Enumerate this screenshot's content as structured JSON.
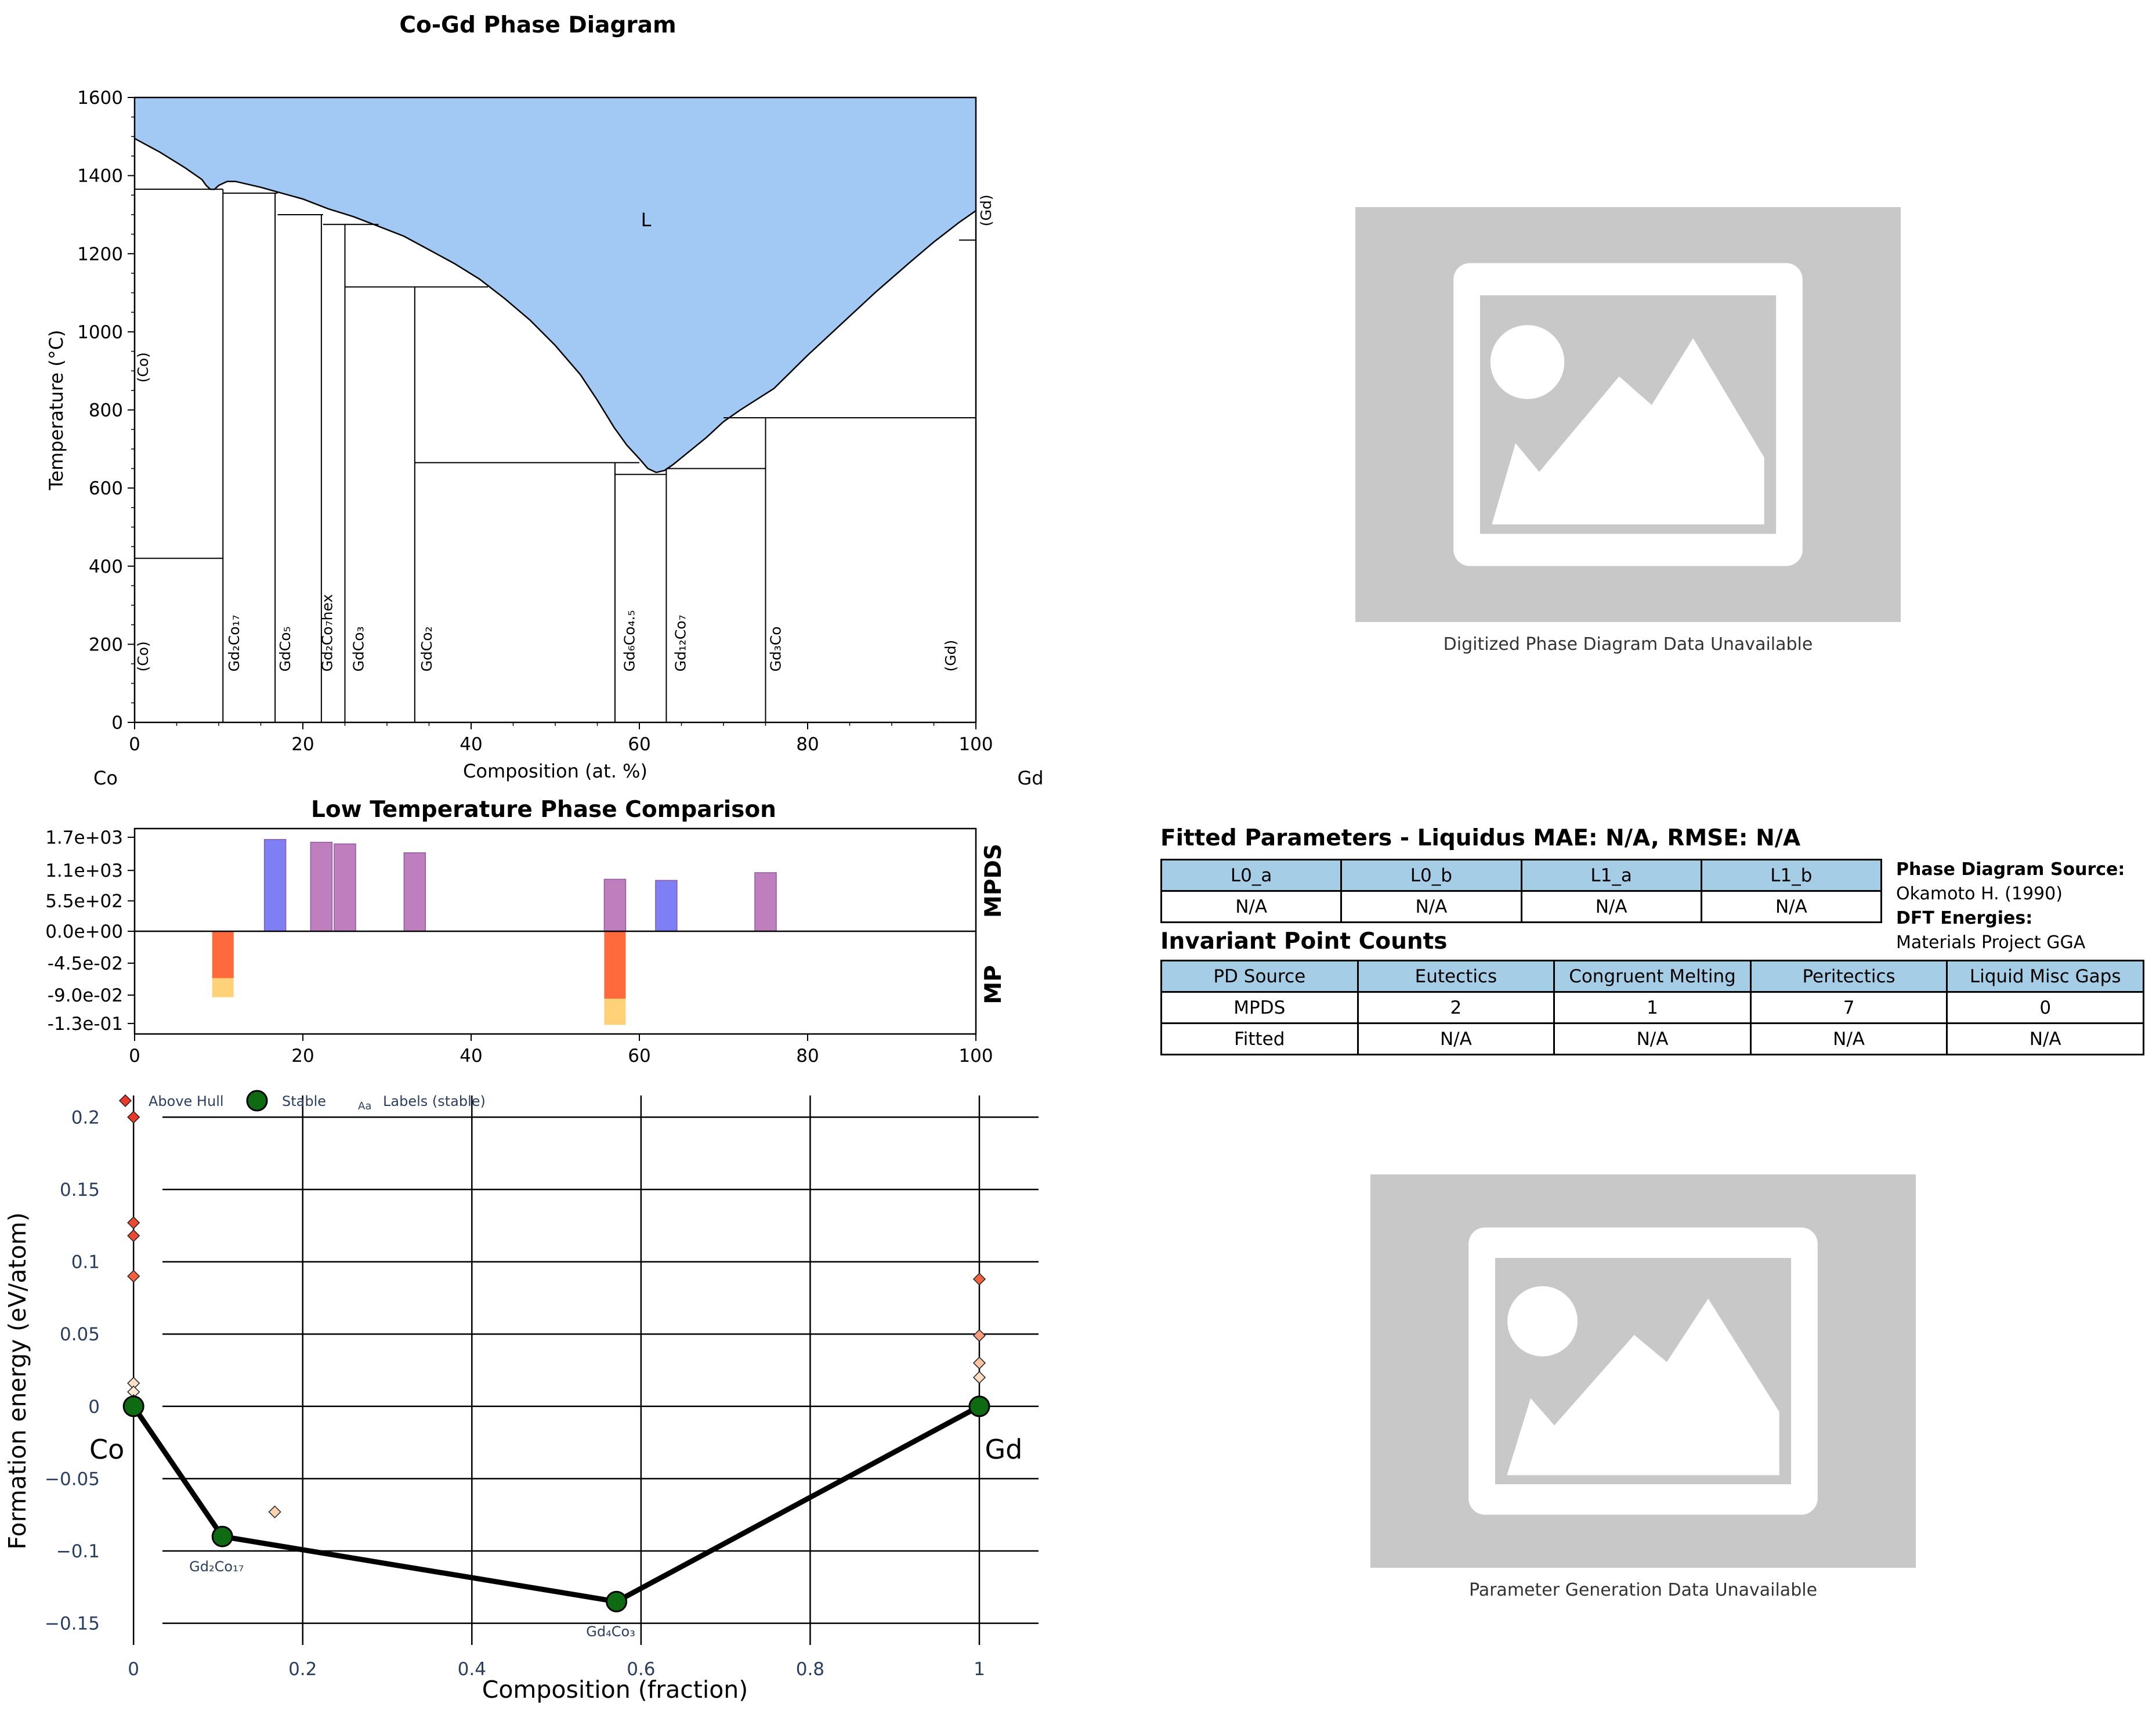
{
  "chart_data": [
    {
      "type": "phase_diagram",
      "title": "Co-Gd Phase Diagram",
      "xlabel": "Composition (at. %)",
      "ylabel": "Temperature (°C)",
      "xlim": [
        0,
        100
      ],
      "ylim": [
        0,
        1600
      ],
      "x_ticks": [
        "0",
        "20",
        "40",
        "60",
        "80",
        "100"
      ],
      "y_ticks": [
        "0",
        "200",
        "400",
        "600",
        "800",
        "1000",
        "1200",
        "1400",
        "1600"
      ],
      "left_element": "Co",
      "right_element": "Gd",
      "liquid_label": "L",
      "liquid_color": "#a1c9f4",
      "liquidus": [
        [
          0,
          1495
        ],
        [
          3,
          1460
        ],
        [
          6,
          1420
        ],
        [
          8,
          1390
        ],
        [
          8.5,
          1375
        ],
        [
          9,
          1365
        ],
        [
          9.5,
          1365
        ],
        [
          10,
          1375
        ],
        [
          11,
          1385
        ],
        [
          12,
          1385
        ],
        [
          15,
          1370
        ],
        [
          17,
          1358
        ],
        [
          20,
          1340
        ],
        [
          23,
          1315
        ],
        [
          26,
          1295
        ],
        [
          29,
          1270
        ],
        [
          32,
          1245
        ],
        [
          35,
          1210
        ],
        [
          38,
          1175
        ],
        [
          41,
          1135
        ],
        [
          44,
          1085
        ],
        [
          47,
          1030
        ],
        [
          50,
          965
        ],
        [
          53,
          890
        ],
        [
          55,
          825
        ],
        [
          57,
          755
        ],
        [
          58.5,
          710
        ],
        [
          60,
          675
        ],
        [
          61,
          650
        ],
        [
          62,
          640
        ],
        [
          63,
          645
        ],
        [
          64,
          660
        ],
        [
          66,
          695
        ],
        [
          68,
          730
        ],
        [
          70,
          770
        ],
        [
          72,
          800
        ],
        [
          76,
          855
        ],
        [
          80,
          940
        ],
        [
          84,
          1020
        ],
        [
          88,
          1100
        ],
        [
          92,
          1175
        ],
        [
          95,
          1230
        ],
        [
          98,
          1280
        ],
        [
          100,
          1310
        ]
      ],
      "lines": [
        [
          [
            0,
            1365
          ],
          [
            10.5,
            1365
          ]
        ],
        [
          [
            10.5,
            1355
          ],
          [
            17,
            1355
          ]
        ],
        [
          [
            17,
            1300
          ],
          [
            22.4,
            1300
          ]
        ],
        [
          [
            22.4,
            1275
          ],
          [
            25,
            1275
          ]
        ],
        [
          [
            25,
            1275
          ],
          [
            29,
            1275
          ]
        ],
        [
          [
            25,
            1115
          ],
          [
            33.3,
            1115
          ]
        ],
        [
          [
            33.3,
            1115
          ],
          [
            42,
            1115
          ]
        ],
        [
          [
            33.3,
            665
          ],
          [
            57.1,
            665
          ]
        ],
        [
          [
            57.1,
            665
          ],
          [
            60,
            665
          ]
        ],
        [
          [
            57.1,
            635
          ],
          [
            63.2,
            635
          ]
        ],
        [
          [
            63.2,
            650
          ],
          [
            75,
            650
          ]
        ],
        [
          [
            63.2,
            650
          ],
          [
            68,
            650
          ]
        ],
        [
          [
            75,
            780
          ],
          [
            100,
            780
          ]
        ],
        [
          [
            70,
            780
          ],
          [
            75,
            780
          ]
        ],
        [
          [
            98,
            1235
          ],
          [
            100,
            1235
          ]
        ],
        [
          [
            0,
            420
          ],
          [
            10.5,
            420
          ]
        ]
      ],
      "verticals": [
        {
          "x": 10.5,
          "top": 1365
        },
        {
          "x": 16.7,
          "top": 1355
        },
        {
          "x": 22.2,
          "top": 1300
        },
        {
          "x": 25,
          "top": 1275
        },
        {
          "x": 33.3,
          "top": 1115
        },
        {
          "x": 57.1,
          "top": 665
        },
        {
          "x": 63.2,
          "top": 650
        },
        {
          "x": 75,
          "top": 780
        }
      ],
      "phase_labels": [
        {
          "text": "(Co)",
          "x": 1.6,
          "y": 130
        },
        {
          "text": "(Co)",
          "x": 1.6,
          "y": 870
        },
        {
          "text": "Gd₂Co₁₇",
          "x": 12.4,
          "y": 130
        },
        {
          "text": "GdCo₅",
          "x": 18.5,
          "y": 130
        },
        {
          "text": "Gd₂Co₇hex",
          "x": 23.5,
          "y": 130
        },
        {
          "text": "GdCo₃",
          "x": 27.2,
          "y": 130
        },
        {
          "text": "GdCo₂",
          "x": 35.3,
          "y": 130
        },
        {
          "text": "Gd₆Co₄.₅",
          "x": 59.4,
          "y": 130
        },
        {
          "text": "Gd₁₂Co₇",
          "x": 65.5,
          "y": 130
        },
        {
          "text": "Gd₃Co",
          "x": 76.8,
          "y": 130
        },
        {
          "text": "(Gd)",
          "x": 97.6,
          "y": 130
        },
        {
          "text": "(Gd)",
          "x": 101.8,
          "y": 1270
        }
      ]
    },
    {
      "type": "bar",
      "title": "Low Temperature Phase Comparison",
      "xlim": [
        0,
        100
      ],
      "x_ticks": [
        "0",
        "20",
        "40",
        "60",
        "80",
        "100"
      ],
      "upper_label": "MPDS",
      "lower_label": "MP",
      "upper_ticks": [
        "1.7e+03",
        "1.1e+03",
        "5.5e+02",
        "0.0e+00"
      ],
      "lower_ticks": [
        "-4.5e-02",
        "-9.0e-02",
        "-1.3e-01"
      ],
      "upper_max": 1700,
      "lower_min": -0.135,
      "mpds_bars": [
        {
          "x": 16.7,
          "value": 1660,
          "color": "#7f7ff5"
        },
        {
          "x": 22.2,
          "value": 1610,
          "color": "#bf7fbf"
        },
        {
          "x": 25,
          "value": 1580,
          "color": "#bf7fbf"
        },
        {
          "x": 33.3,
          "value": 1420,
          "color": "#bf7fbf"
        },
        {
          "x": 57.1,
          "value": 940,
          "color": "#bf7fbf"
        },
        {
          "x": 63.2,
          "value": 920,
          "color": "#7f7ff5"
        },
        {
          "x": 75,
          "value": 1060,
          "color": "#bf7fbf"
        }
      ],
      "mp_bars": [
        {
          "x": 10.5,
          "value": -0.093,
          "overlay": -0.066
        },
        {
          "x": 57.1,
          "value": -0.132,
          "overlay": -0.095
        }
      ],
      "mp_colors": {
        "outer": "#ffd27a",
        "inner": "#ff6a3d"
      }
    },
    {
      "type": "scatter",
      "xlabel": "Composition (fraction)",
      "ylabel": "Formation energy (eV/atom)",
      "xlim": [
        -0.055,
        1.07
      ],
      "ylim": [
        -0.165,
        0.215
      ],
      "x_ticks": [
        "0",
        "0.2",
        "0.4",
        "0.6",
        "0.8",
        "1"
      ],
      "y_ticks": [
        "0.2",
        "0.15",
        "0.1",
        "0.05",
        "0",
        "−0.05",
        "−0.1",
        "−0.15"
      ],
      "legend": [
        "Above Hull",
        "Stable",
        "Labels (stable)"
      ],
      "legend_glyph": "Aa",
      "end_labels": [
        "Co",
        "Gd"
      ],
      "hull": [
        [
          0,
          0
        ],
        [
          0.105,
          -0.09
        ],
        [
          0.571,
          -0.135
        ],
        [
          1,
          0
        ]
      ],
      "stable_labels": [
        {
          "text": "Gd₂Co₁₇",
          "x": 0.105,
          "y": -0.09
        },
        {
          "text": "Gd₄Co₃",
          "x": 0.571,
          "y": -0.135
        }
      ],
      "above_hull": [
        {
          "x": 0,
          "y": 0.2,
          "c": "#e8392b"
        },
        {
          "x": 0,
          "y": 0.127,
          "c": "#ea4a32"
        },
        {
          "x": 0,
          "y": 0.118,
          "c": "#ea4a32"
        },
        {
          "x": 0,
          "y": 0.09,
          "c": "#ef6140"
        },
        {
          "x": 0,
          "y": 0.016,
          "c": "#fde0c8"
        },
        {
          "x": 0,
          "y": 0.01,
          "c": "#fde8d6"
        },
        {
          "x": 0,
          "y": 0.004,
          "c": "#fff0e4"
        },
        {
          "x": 0.167,
          "y": -0.073,
          "c": "#fbd3b0"
        },
        {
          "x": 1,
          "y": 0.088,
          "c": "#ef6140"
        },
        {
          "x": 1,
          "y": 0.049,
          "c": "#f99d7c"
        },
        {
          "x": 1,
          "y": 0.03,
          "c": "#fdc4a4"
        },
        {
          "x": 1,
          "y": 0.02,
          "c": "#fedcc2"
        }
      ]
    }
  ],
  "placeholders": [
    {
      "caption": "Digitized Phase Diagram Data Unavailable"
    },
    {
      "caption": "Parameter Generation Data Unavailable"
    }
  ],
  "fitted": {
    "title": "Fitted Parameters - Liquidus MAE: N/A, RMSE: N/A",
    "headers": [
      "L0_a",
      "L0_b",
      "L1_a",
      "L1_b"
    ],
    "values": [
      "N/A",
      "N/A",
      "N/A",
      "N/A"
    ]
  },
  "source": {
    "pd_label": "Phase Diagram Source:",
    "pd_value": "Okamoto H. (1990)",
    "dft_label": "DFT Energies:",
    "dft_value": "Materials Project GGA"
  },
  "invariant": {
    "title": "Invariant Point Counts",
    "headers": [
      "PD Source",
      "Eutectics",
      "Congruent Melting",
      "Peritectics",
      "Liquid Misc Gaps"
    ],
    "rows": [
      [
        "MPDS",
        "2",
        "1",
        "7",
        "0"
      ],
      [
        "Fitted",
        "N/A",
        "N/A",
        "N/A",
        "N/A"
      ]
    ]
  }
}
